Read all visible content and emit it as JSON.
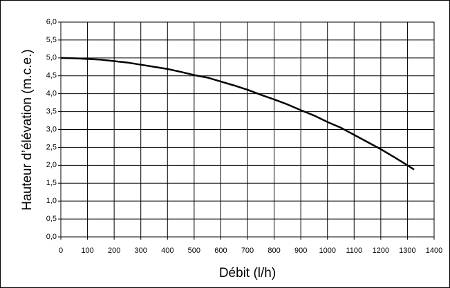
{
  "chart_data": {
    "type": "line",
    "x_label": "Débit (l/h)",
    "y_label": "Hauteur d’élévation (m.c.e.)",
    "x": [
      0,
      50,
      100,
      150,
      200,
      250,
      300,
      350,
      400,
      450,
      500,
      550,
      600,
      650,
      700,
      750,
      800,
      850,
      900,
      950,
      1000,
      1050,
      1100,
      1150,
      1200,
      1250,
      1300,
      1325
    ],
    "series": [
      {
        "color": "#000000",
        "values": [
          5.0,
          4.99,
          4.97,
          4.95,
          4.91,
          4.87,
          4.81,
          4.75,
          4.69,
          4.61,
          4.52,
          4.45,
          4.34,
          4.23,
          4.11,
          3.97,
          3.84,
          3.7,
          3.54,
          3.39,
          3.21,
          3.05,
          2.85,
          2.65,
          2.45,
          2.23,
          2.0,
          1.88
        ]
      }
    ],
    "xlim": [
      0,
      1400
    ],
    "xticks": [
      0,
      100,
      200,
      300,
      400,
      500,
      600,
      700,
      800,
      900,
      1000,
      1100,
      1200,
      1300,
      1400
    ],
    "ylim": [
      0,
      6
    ],
    "yticks": [
      {
        "value": 0,
        "label": "0,0"
      },
      {
        "value": 0.5,
        "label": "0,5"
      },
      {
        "value": 1,
        "label": "1,0"
      },
      {
        "value": 1.5,
        "label": "1,5"
      },
      {
        "value": 2,
        "label": "2,0"
      },
      {
        "value": 2.5,
        "label": "2,5"
      },
      {
        "value": 3,
        "label": "3,0"
      },
      {
        "value": 3.5,
        "label": "3,5"
      },
      {
        "value": 4,
        "label": "4,0"
      },
      {
        "value": 4.5,
        "label": "4,5"
      },
      {
        "value": 5,
        "label": "5,0"
      },
      {
        "value": 5.5,
        "label": "5,5"
      },
      {
        "value": 6,
        "label": "6,0"
      }
    ],
    "grid": true
  }
}
